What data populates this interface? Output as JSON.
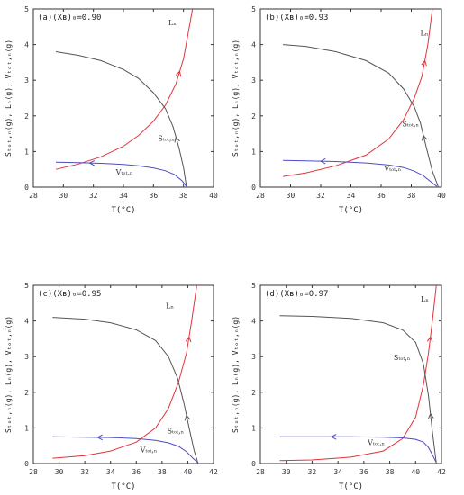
{
  "colors": {
    "L": "#e0343c",
    "S": "#555555",
    "V": "#4d4dc4",
    "axis": "#333333"
  },
  "chart_data": [
    {
      "type": "line",
      "title": "(a)(Xʙ)₀=0.90",
      "xlabel": "T(°C)",
      "ylabel": "Sₜₒₜ,ₙ(g), Lₙ(g), Vₜₒₜ,ₙ(g)",
      "xlim": [
        28,
        40
      ],
      "ylim": [
        0,
        5
      ],
      "xticks": [
        "28",
        "30",
        "32",
        "34",
        "36",
        "38",
        "40"
      ],
      "yticks": [
        "0",
        "1",
        "2",
        "3",
        "4",
        "5"
      ],
      "series": [
        {
          "name": "Lₙ",
          "x": [
            29.5,
            31,
            32.5,
            34,
            35,
            36,
            36.8,
            37.5,
            38,
            38.3,
            38.6
          ],
          "y": [
            0.5,
            0.65,
            0.85,
            1.15,
            1.45,
            1.85,
            2.3,
            2.9,
            3.6,
            4.3,
            5.0
          ]
        },
        {
          "name": "Sₜₒₜ,ₙ",
          "x": [
            29.5,
            31,
            32.5,
            34,
            35,
            36,
            36.8,
            37.3,
            37.7,
            38,
            38.2
          ],
          "y": [
            3.8,
            3.7,
            3.55,
            3.3,
            3.05,
            2.65,
            2.2,
            1.7,
            1.1,
            0.55,
            0.0
          ]
        },
        {
          "name": "Vₜₒₜ,ₙ",
          "x": [
            29.5,
            31,
            32.5,
            34,
            35,
            36,
            36.8,
            37.4,
            37.9,
            38.2
          ],
          "y": [
            0.7,
            0.69,
            0.67,
            0.64,
            0.6,
            0.54,
            0.46,
            0.35,
            0.18,
            0.02
          ]
        }
      ]
    },
    {
      "type": "line",
      "title": "(b)(Xʙ)₀=0.93",
      "xlabel": "T(°C)",
      "ylabel": "Sₜₒₜ,ₙ(g), Lₙ(g), Vₜₒₜ,ₙ(g)",
      "xlim": [
        28,
        40
      ],
      "ylim": [
        0,
        5
      ],
      "xticks": [
        "28",
        "30",
        "32",
        "34",
        "36",
        "38",
        "40"
      ],
      "yticks": [
        "0",
        "1",
        "2",
        "3",
        "4",
        "5"
      ],
      "series": [
        {
          "name": "Lₙ",
          "x": [
            29.5,
            31,
            33,
            35,
            36.5,
            37.5,
            38.2,
            38.7,
            39.1,
            39.4
          ],
          "y": [
            0.3,
            0.4,
            0.6,
            0.9,
            1.35,
            1.9,
            2.5,
            3.1,
            4.0,
            5.0
          ]
        },
        {
          "name": "Sₜₒₜ,ₙ",
          "x": [
            29.5,
            31,
            33,
            35,
            36.5,
            37.5,
            38.2,
            38.6,
            39,
            39.4,
            39.8
          ],
          "y": [
            4.0,
            3.95,
            3.8,
            3.55,
            3.2,
            2.75,
            2.25,
            1.8,
            1.1,
            0.45,
            0.0
          ]
        },
        {
          "name": "Vₜₒₜ,ₙ",
          "x": [
            29.5,
            31,
            33,
            35,
            36.5,
            37.5,
            38.2,
            38.8,
            39.3,
            39.7
          ],
          "y": [
            0.75,
            0.74,
            0.72,
            0.68,
            0.62,
            0.55,
            0.45,
            0.32,
            0.15,
            0.02
          ]
        }
      ]
    },
    {
      "type": "line",
      "title": "(c)(Xʙ)₀=0.95",
      "xlabel": "T(°C)",
      "ylabel": "Sₜₒₜ,ₙ(g), Lₙ(g), Vₜₒₜ,ₙ(g)",
      "xlim": [
        28,
        42
      ],
      "ylim": [
        0,
        5
      ],
      "xticks": [
        "28",
        "30",
        "32",
        "34",
        "36",
        "38",
        "40",
        "42"
      ],
      "yticks": [
        "0",
        "1",
        "2",
        "3",
        "4",
        "5"
      ],
      "series": [
        {
          "name": "Lₙ",
          "x": [
            29.5,
            32,
            34,
            36,
            37.5,
            38.5,
            39.3,
            39.9,
            40.3,
            40.7
          ],
          "y": [
            0.15,
            0.22,
            0.35,
            0.6,
            1.0,
            1.55,
            2.3,
            3.1,
            4.0,
            5.0
          ]
        },
        {
          "name": "Sₜₒₜ,ₙ",
          "x": [
            29.5,
            32,
            34,
            36,
            37.5,
            38.5,
            39.2,
            39.7,
            40.1,
            40.5,
            40.8
          ],
          "y": [
            4.1,
            4.05,
            3.95,
            3.75,
            3.45,
            3.0,
            2.4,
            1.7,
            1.0,
            0.35,
            0.0
          ]
        },
        {
          "name": "Vₜₒₜ,ₙ",
          "x": [
            29.5,
            32,
            34,
            36,
            37.5,
            38.5,
            39.3,
            39.9,
            40.4,
            40.8
          ],
          "y": [
            0.75,
            0.74,
            0.73,
            0.7,
            0.65,
            0.58,
            0.48,
            0.33,
            0.15,
            0.02
          ]
        }
      ]
    },
    {
      "type": "line",
      "title": "(d)(Xʙ)₀=0.97",
      "xlabel": "T(°C)",
      "ylabel": "Sₜₒₜ,ₙ(g), Lₙ(g), Vₜₒₜ,ₙ(g)",
      "xlim": [
        28,
        42
      ],
      "ylim": [
        0,
        5
      ],
      "xticks": [
        "28",
        "30",
        "32",
        "34",
        "36",
        "38",
        "40",
        "42"
      ],
      "yticks": [
        "0",
        "1",
        "2",
        "3",
        "4",
        "5"
      ],
      "series": [
        {
          "name": "Lₙ",
          "x": [
            29.5,
            32,
            35,
            37.5,
            39,
            40,
            40.6,
            41,
            41.3,
            41.6
          ],
          "y": [
            0.08,
            0.1,
            0.18,
            0.35,
            0.7,
            1.3,
            2.2,
            3.1,
            4.0,
            5.0
          ]
        },
        {
          "name": "Sₜₒₜ,ₙ",
          "x": [
            29.5,
            32,
            35,
            37.5,
            39,
            40,
            40.6,
            41,
            41.3,
            41.6
          ],
          "y": [
            4.15,
            4.13,
            4.07,
            3.95,
            3.75,
            3.4,
            2.8,
            1.9,
            0.9,
            0.0
          ]
        },
        {
          "name": "Vₜₒₜ,ₙ",
          "x": [
            29.5,
            32,
            35,
            37.5,
            39,
            40,
            40.6,
            41,
            41.3,
            41.6
          ],
          "y": [
            0.75,
            0.75,
            0.75,
            0.74,
            0.72,
            0.68,
            0.6,
            0.45,
            0.25,
            0.02
          ]
        }
      ]
    }
  ]
}
